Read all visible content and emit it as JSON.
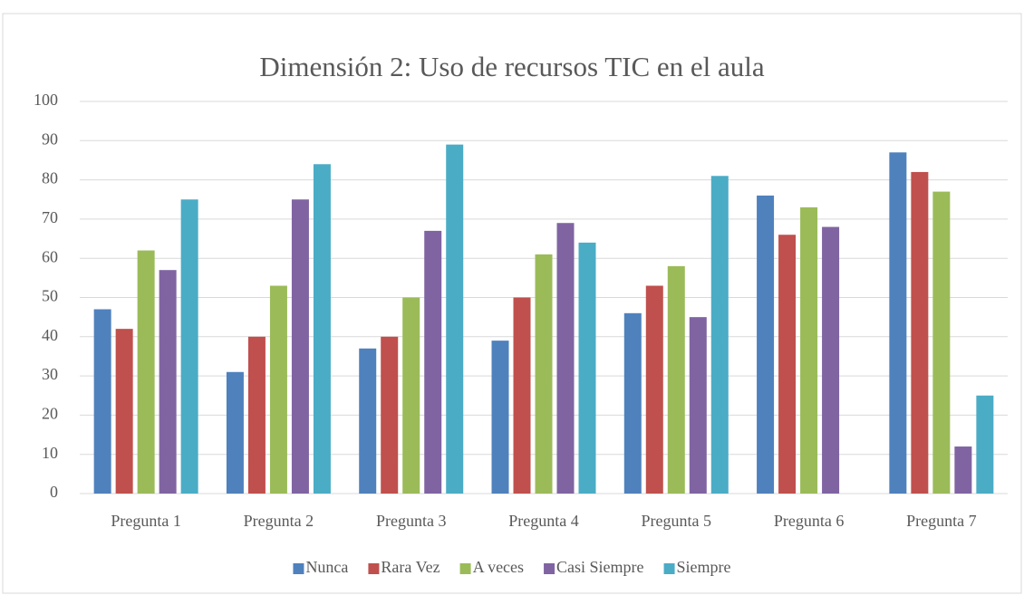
{
  "chart_data": {
    "type": "bar",
    "title": "Dimensión 2: Uso de recursos TIC en el aula",
    "categories": [
      "Pregunta 1",
      "Pregunta 2",
      "Pregunta 3",
      "Pregunta 4",
      "Pregunta 5",
      "Pregunta 6",
      "Pregunta 7"
    ],
    "series": [
      {
        "name": "Nunca",
        "color": "#4f81bd",
        "values": [
          47,
          31,
          37,
          39,
          46,
          76,
          87
        ]
      },
      {
        "name": "Rara Vez",
        "color": "#c0504d",
        "values": [
          42,
          40,
          40,
          50,
          53,
          66,
          82
        ]
      },
      {
        "name": "A veces",
        "color": "#9bbb59",
        "values": [
          62,
          53,
          50,
          61,
          58,
          73,
          77
        ]
      },
      {
        "name": "Casi Siempre",
        "color": "#8064a2",
        "values": [
          57,
          75,
          67,
          69,
          45,
          68,
          12
        ]
      },
      {
        "name": "Siempre",
        "color": "#4bacc6",
        "values": [
          75,
          84,
          89,
          64,
          81,
          0,
          25
        ]
      }
    ],
    "ylim": [
      0,
      100
    ],
    "yticks": [
      0,
      10,
      20,
      30,
      40,
      50,
      60,
      70,
      80,
      90,
      100
    ],
    "grid": true,
    "legend": "bottom"
  }
}
